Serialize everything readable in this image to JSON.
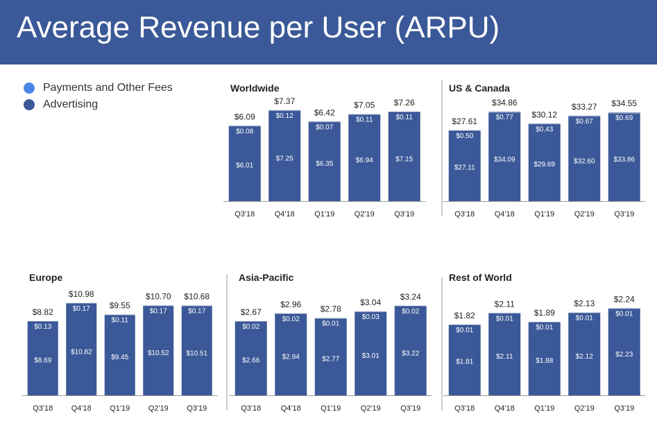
{
  "title": "Average Revenue per User (ARPU)",
  "colors": {
    "header_bg": "#3b5998",
    "payments": "#4a86e8",
    "advertising": "#3b5998",
    "axis": "#999999"
  },
  "legend": [
    {
      "label": "Payments and Other Fees",
      "color": "#4a86e8"
    },
    {
      "label": "Advertising",
      "color": "#3b5998"
    }
  ],
  "chart_data": [
    {
      "type": "bar",
      "stacked": true,
      "title": "Worldwide",
      "categories": [
        "Q3'18",
        "Q4'18",
        "Q1'19",
        "Q2'19",
        "Q3'19"
      ],
      "series": [
        {
          "name": "Advertising",
          "values": [
            6.01,
            7.25,
            6.35,
            6.94,
            7.15
          ],
          "labels": [
            "$6.01",
            "$7.25",
            "$6.35",
            "$6.94",
            "$7.15"
          ]
        },
        {
          "name": "Payments and Other Fees",
          "values": [
            0.08,
            0.12,
            0.07,
            0.11,
            0.11
          ],
          "labels": [
            "$0.08",
            "$0.12",
            "$0.07",
            "$0.11",
            "$0.11"
          ]
        }
      ],
      "totals": [
        6.09,
        7.37,
        6.42,
        7.05,
        7.26
      ],
      "total_labels": [
        "$6.09",
        "$7.37",
        "$6.42",
        "$7.05",
        "$7.26"
      ]
    },
    {
      "type": "bar",
      "stacked": true,
      "title": "US & Canada",
      "categories": [
        "Q3'18",
        "Q4'18",
        "Q1'19",
        "Q2'19",
        "Q3'19"
      ],
      "series": [
        {
          "name": "Advertising",
          "values": [
            27.11,
            34.09,
            29.69,
            32.6,
            33.86
          ],
          "labels": [
            "$27.11",
            "$34.09",
            "$29.69",
            "$32.60",
            "$33.86"
          ]
        },
        {
          "name": "Payments and Other Fees",
          "values": [
            0.5,
            0.77,
            0.43,
            0.67,
            0.69
          ],
          "labels": [
            "$0.50",
            "$0.77",
            "$0.43",
            "$0.67",
            "$0.69"
          ]
        }
      ],
      "totals": [
        27.61,
        34.86,
        30.12,
        33.27,
        34.55
      ],
      "total_labels": [
        "$27.61",
        "$34.86",
        "$30.12",
        "$33.27",
        "$34.55"
      ]
    },
    {
      "type": "bar",
      "stacked": true,
      "title": "Europe",
      "categories": [
        "Q3'18",
        "Q4'18",
        "Q1'19",
        "Q2'19",
        "Q3'19"
      ],
      "series": [
        {
          "name": "Advertising",
          "values": [
            8.69,
            10.82,
            9.45,
            10.52,
            10.51
          ],
          "labels": [
            "$8.69",
            "$10.82",
            "$9.45",
            "$10.52",
            "$10.51"
          ]
        },
        {
          "name": "Payments and Other Fees",
          "values": [
            0.13,
            0.17,
            0.11,
            0.17,
            0.17
          ],
          "labels": [
            "$0.13",
            "$0.17",
            "$0.11",
            "$0.17",
            "$0.17"
          ]
        }
      ],
      "totals": [
        8.82,
        10.98,
        9.55,
        10.7,
        10.68
      ],
      "total_labels": [
        "$8.82",
        "$10.98",
        "$9.55",
        "$10.70",
        "$10.68"
      ]
    },
    {
      "type": "bar",
      "stacked": true,
      "title": "Asia-Pacific",
      "categories": [
        "Q3'18",
        "Q4'18",
        "Q1'19",
        "Q2'19",
        "Q3'19"
      ],
      "series": [
        {
          "name": "Advertising",
          "values": [
            2.66,
            2.94,
            2.77,
            3.01,
            3.22
          ],
          "labels": [
            "$2.66",
            "$2.94",
            "$2.77",
            "$3.01",
            "$3.22"
          ]
        },
        {
          "name": "Payments and Other Fees",
          "values": [
            0.02,
            0.02,
            0.01,
            0.03,
            0.02
          ],
          "labels": [
            "$0.02",
            "$0.02",
            "$0.01",
            "$0.03",
            "$0.02"
          ]
        }
      ],
      "totals": [
        2.67,
        2.96,
        2.78,
        3.04,
        3.24
      ],
      "total_labels": [
        "$2.67",
        "$2.96",
        "$2.78",
        "$3.04",
        "$3.24"
      ]
    },
    {
      "type": "bar",
      "stacked": true,
      "title": "Rest of World",
      "categories": [
        "Q3'18",
        "Q4'18",
        "Q1'19",
        "Q2'19",
        "Q3'19"
      ],
      "series": [
        {
          "name": "Advertising",
          "values": [
            1.81,
            2.11,
            1.88,
            2.12,
            2.23
          ],
          "labels": [
            "$1.81",
            "$2.11",
            "$1.88",
            "$2.12",
            "$2.23"
          ]
        },
        {
          "name": "Payments and Other Fees",
          "values": [
            0.01,
            0.01,
            0.01,
            0.01,
            0.01
          ],
          "labels": [
            "$0.01",
            "$0.01",
            "$0.01",
            "$0.01",
            "$0.01"
          ]
        }
      ],
      "totals": [
        1.82,
        2.11,
        1.89,
        2.13,
        2.24
      ],
      "total_labels": [
        "$1.82",
        "$2.11",
        "$1.89",
        "$2.13",
        "$2.24"
      ]
    }
  ]
}
